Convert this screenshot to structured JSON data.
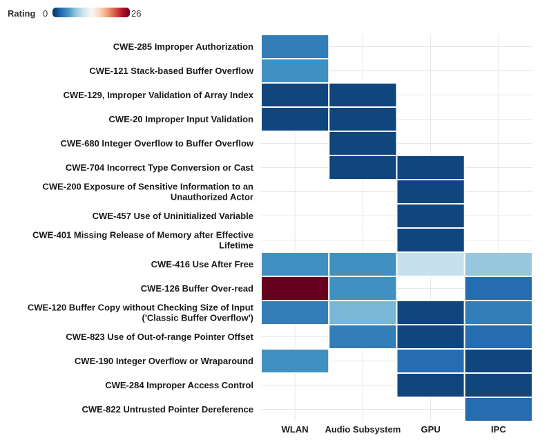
{
  "chart_data": {
    "type": "heatmap",
    "legend": {
      "title": "Rating",
      "min": 0,
      "max": 26,
      "min_label": "0",
      "max_label": "26"
    },
    "colorscale": [
      "#053061",
      "#2166ac",
      "#4393c3",
      "#92c5de",
      "#d1e5f0",
      "#f7f7f7",
      "#fddbc7",
      "#f4a582",
      "#d6604d",
      "#b2182b",
      "#67001f"
    ],
    "columns": [
      "WLAN",
      "Audio Subsystem",
      "GPU",
      "IPC"
    ],
    "rows": [
      {
        "label": [
          "CWE-285 Improper Authorization"
        ],
        "values": [
          4,
          null,
          null,
          null
        ]
      },
      {
        "label": [
          "CWE-121 Stack-based Buffer Overflow"
        ],
        "values": [
          5,
          null,
          null,
          null
        ]
      },
      {
        "label": [
          "CWE-129, Improper Validation of Array Index"
        ],
        "values": [
          1,
          1,
          null,
          null
        ]
      },
      {
        "label": [
          "CWE-20 Improper Input Validation"
        ],
        "values": [
          1,
          1,
          null,
          null
        ]
      },
      {
        "label": [
          "CWE-680 Integer Overflow to Buffer Overflow"
        ],
        "values": [
          null,
          1,
          null,
          null
        ]
      },
      {
        "label": [
          "CWE-704 Incorrect Type Conversion or Cast"
        ],
        "values": [
          null,
          1,
          1,
          null
        ]
      },
      {
        "label": [
          "CWE-200 Exposure of Sensitive Information to an",
          "Unauthorized Actor"
        ],
        "values": [
          null,
          null,
          1,
          null
        ]
      },
      {
        "label": [
          "CWE-457 Use of Uninitialized Variable"
        ],
        "values": [
          null,
          null,
          1,
          null
        ]
      },
      {
        "label": [
          "CWE-401 Missing Release of Memory after Effective",
          "Lifetime"
        ],
        "values": [
          null,
          null,
          1,
          null
        ]
      },
      {
        "label": [
          "CWE-416 Use After Free"
        ],
        "values": [
          5,
          5,
          10,
          8
        ]
      },
      {
        "label": [
          "CWE-126 Buffer Over-read"
        ],
        "values": [
          26,
          5,
          null,
          3
        ]
      },
      {
        "label": [
          "CWE-120 Buffer Copy without Checking Size of Input",
          "('Classic Buffer Overflow')"
        ],
        "values": [
          4,
          7,
          1,
          4
        ]
      },
      {
        "label": [
          "CWE-823 Use of Out-of-range Pointer Offset"
        ],
        "values": [
          null,
          4,
          1,
          3
        ]
      },
      {
        "label": [
          "CWE-190 Integer Overflow or Wraparound"
        ],
        "values": [
          5,
          null,
          3,
          1
        ]
      },
      {
        "label": [
          "CWE-284 Improper Access Control"
        ],
        "values": [
          null,
          null,
          1,
          1
        ]
      },
      {
        "label": [
          "CWE-822 Untrusted Pointer Dereference"
        ],
        "values": [
          null,
          null,
          null,
          3
        ]
      }
    ],
    "grid": true
  }
}
